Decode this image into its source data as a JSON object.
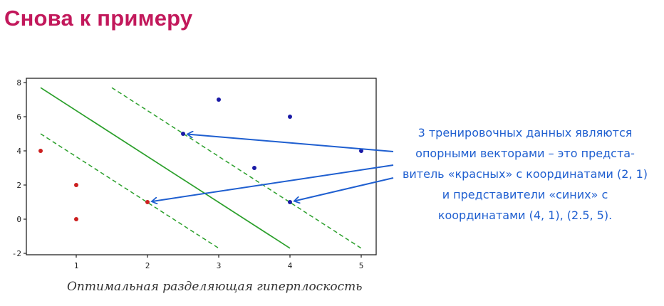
{
  "slide": {
    "title": "Снова к примеру",
    "caption": "Оптимальная разделяющая гиперплоскость",
    "annotation": [
      "3 тренировочных данных являются",
      "опорными векторами – это предста-",
      "витель «красных» с координатами (2, 1)",
      "и представители  «синих» с",
      "координатами (4, 1), (2.5, 5)."
    ]
  },
  "colors": {
    "title": "#c2185b",
    "red_points": "#cc1f1f",
    "blue_points": "#1a1aa6",
    "hyperplane": "#2ca02c",
    "annotation": "#1f5fd0"
  },
  "chart_data": {
    "type": "scatter",
    "x_ticks": [
      "1",
      "2",
      "3",
      "4",
      "5"
    ],
    "y_ticks": [
      "-2",
      "0",
      "2",
      "4",
      "6",
      "8"
    ],
    "xlim": [
      0.3,
      5.25
    ],
    "ylim": [
      -2.1,
      8.1
    ],
    "grid": false,
    "series": [
      {
        "color": "#cc1f1f",
        "points": [
          [
            0.5,
            4
          ],
          [
            1,
            2
          ],
          [
            1,
            0
          ],
          [
            2,
            1
          ]
        ]
      },
      {
        "color": "#1a1aa6",
        "points": [
          [
            3,
            7
          ],
          [
            4,
            6
          ],
          [
            2.5,
            5
          ],
          [
            3.5,
            3
          ],
          [
            4,
            1
          ],
          [
            5,
            4
          ]
        ]
      }
    ],
    "lines": [
      {
        "style": "solid",
        "color": "#2ca02c",
        "from": [
          0.5,
          7.7
        ],
        "to": [
          4,
          -1.7
        ]
      },
      {
        "style": "dashed",
        "color": "#2ca02c",
        "from": [
          1.5,
          7.7
        ],
        "to": [
          5,
          -1.7
        ]
      },
      {
        "style": "dashed",
        "color": "#2ca02c",
        "from": [
          0.5,
          5
        ],
        "to": [
          3,
          -1.7
        ]
      }
    ],
    "support_vectors": [
      [
        2.5,
        5
      ],
      [
        2,
        1
      ],
      [
        4,
        1
      ]
    ]
  }
}
